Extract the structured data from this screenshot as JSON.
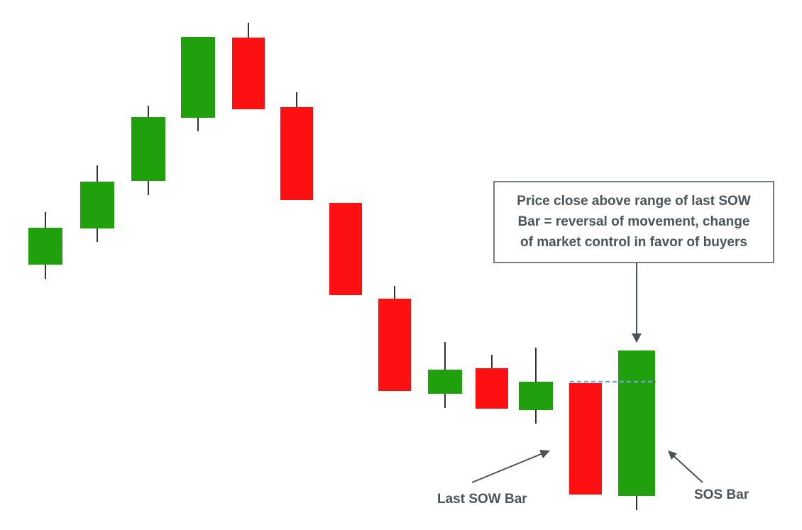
{
  "diagram": {
    "colors": {
      "bullish": "#1fa00c",
      "bearish": "#fd1012",
      "wick": "#333333",
      "annotation": "#4a5458",
      "dashed_line": "#6fa8dc",
      "callout_border": "#4a5458",
      "callout_fill": "#ffffff"
    },
    "candles": [
      {
        "id": "c1",
        "type": "bullish"
      },
      {
        "id": "c2",
        "type": "bullish"
      },
      {
        "id": "c3",
        "type": "bullish"
      },
      {
        "id": "c4",
        "type": "bullish"
      },
      {
        "id": "c5",
        "type": "bearish"
      },
      {
        "id": "c6",
        "type": "bearish"
      },
      {
        "id": "c7",
        "type": "bearish"
      },
      {
        "id": "c8",
        "type": "bearish"
      },
      {
        "id": "c9",
        "type": "bullish"
      },
      {
        "id": "c10",
        "type": "bearish"
      },
      {
        "id": "c11",
        "type": "bullish"
      },
      {
        "id": "c12",
        "type": "bearish",
        "role": "last-sow-bar"
      },
      {
        "id": "c13",
        "type": "bullish",
        "role": "sos-bar"
      }
    ],
    "callout": {
      "lines": [
        "Price close above range of last SOW",
        "Bar = reversal of movement, change",
        "of market control in favor of buyers"
      ]
    },
    "labels": {
      "last_sow": "Last SOW Bar",
      "sos": "SOS Bar"
    }
  }
}
